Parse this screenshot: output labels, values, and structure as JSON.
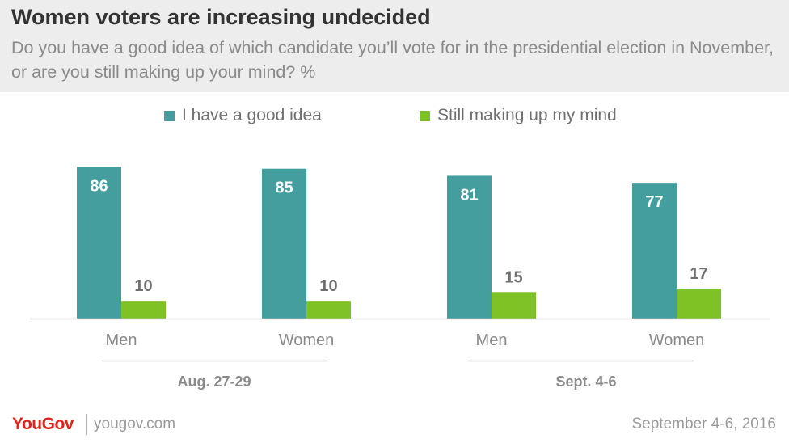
{
  "header": {
    "title": "Women voters are increasing undecided",
    "subtitle": "Do you have a good idea of which candidate you’ll vote for in the presidential election in November, or are you still making up your mind? %"
  },
  "legend": {
    "items": [
      {
        "label": "I have a good idea",
        "color": "#459e9e"
      },
      {
        "label": "Still making up my mind",
        "color": "#7ec225"
      }
    ]
  },
  "chart_data": {
    "type": "bar",
    "title": "Women voters are increasing undecided",
    "subtitle": "Do you have a good idea of which candidate you’ll vote for in the presidential election in November, or are you still making up your mind? %",
    "categories": [
      "Men",
      "Women",
      "Men",
      "Women"
    ],
    "groups": [
      {
        "label": "Aug. 27-29",
        "categories": [
          "Men",
          "Women"
        ]
      },
      {
        "label": "Sept. 4-6",
        "categories": [
          "Men",
          "Women"
        ]
      }
    ],
    "series": [
      {
        "name": "I have a good idea",
        "color": "#459e9e",
        "values": [
          86,
          85,
          81,
          77
        ]
      },
      {
        "name": "Still making up my mind",
        "color": "#7ec225",
        "values": [
          10,
          10,
          15,
          17
        ]
      }
    ],
    "ylim": [
      0,
      100
    ],
    "grid": false,
    "legend_position": "top"
  },
  "footer": {
    "brand": "YouGov",
    "site": "yougov.com",
    "date": "September 4-6, 2016"
  }
}
